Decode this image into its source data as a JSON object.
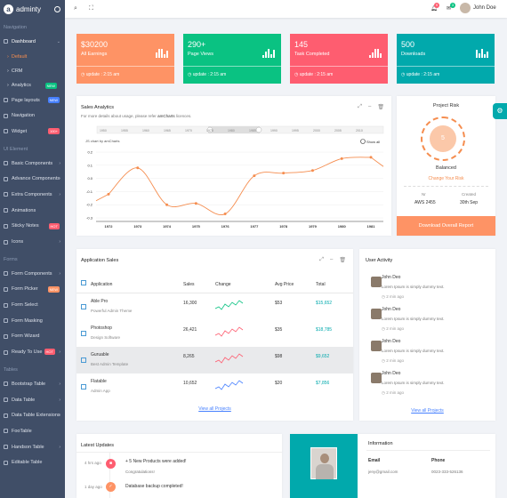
{
  "brand": {
    "name": "adminty"
  },
  "sidebar": {
    "sections": {
      "navigation": "Navigation",
      "ui": "UI Element",
      "forms": "Forms",
      "tables": "Tables"
    },
    "dashboard": "Dashboard",
    "sub_default": "Default",
    "sub_crm": "CRM",
    "sub_analytics": "Analytics",
    "badge_new": "NEW",
    "page_layouts": "Page layouts",
    "badge_new2": "NEW",
    "navigation": "Navigation",
    "widget": "Widget",
    "badge_100": "100+",
    "basic_components": "Basic Components",
    "advance_components": "Advance Components",
    "extra_components": "Extra Components",
    "animations": "Animations",
    "sticky_notes": "Sticky Notes",
    "badge_hot": "HOT",
    "icons": "Icons",
    "form_components": "Form Components",
    "form_picker": "Form Picker",
    "badge_new3": "NEW",
    "form_select": "Form Select",
    "form_masking": "Form Masking",
    "form_wizard": "Form Wizard",
    "ready_to_use": "Ready To Use",
    "badge_hot2": "HOT",
    "bootstrap_table": "Bootstrap Table",
    "data_table": "Data Table",
    "data_table_ext": "Data Table Extensions",
    "footable": "FooTable",
    "handson_table": "Handson Table",
    "editable_table": "Editable Table"
  },
  "topbar": {
    "notif1": "9",
    "notif2": "3",
    "user": "John Doe"
  },
  "stats": [
    {
      "value": "$30200",
      "label": "All Earnings",
      "update": "update : 2:15 am",
      "color": "#fe9365"
    },
    {
      "value": "290+",
      "label": "Page Views",
      "update": "update : 2:15 am",
      "color": "#0ac282"
    },
    {
      "value": "145",
      "label": "Task Completed",
      "update": "update : 2:15 am",
      "color": "#fe5d70"
    },
    {
      "value": "500",
      "label": "Downloads",
      "update": "update : 2:15 am",
      "color": "#01a9ac"
    }
  ],
  "sales_analytics": {
    "title": "Sales Analytics",
    "desc_pre": "For more details about usage, please refer ",
    "desc_link": "amCharts",
    "desc_post": " licences.",
    "credit": "JS chart by amCharts",
    "show_all": "Show all"
  },
  "chart_data": {
    "type": "line",
    "x": [
      "1972",
      "1973",
      "1974",
      "1975",
      "1976",
      "1977",
      "1978",
      "1979",
      "1980",
      "1981"
    ],
    "values": [
      -0.12,
      0.08,
      -0.2,
      -0.19,
      -0.27,
      0.02,
      0.04,
      0.06,
      0.15,
      0.16
    ],
    "yticks": [
      "0.2",
      "0.1",
      "0.0",
      "-0.1",
      "-0.2",
      "-0.3"
    ],
    "scroll_ticks": [
      "1950",
      "1955",
      "1960",
      "1965",
      "1970",
      "1975",
      "1980",
      "1985",
      "1990",
      "1995",
      "2000",
      "2005",
      "2010"
    ],
    "ylim": [
      -0.3,
      0.2
    ],
    "color": "#f58d4f"
  },
  "risk": {
    "title": "Project Risk",
    "value": "5",
    "status": "Balanced",
    "link": "Change Your Risk",
    "nr_label": "Nr",
    "nr_value": "AWS 2455",
    "created_label": "Created",
    "created_value": "30th Sep",
    "button": "Download Overall Report"
  },
  "app_sales": {
    "title": "Application Sales",
    "headers": [
      "Application",
      "Sales",
      "Change",
      "Avg Price",
      "Total"
    ],
    "rows": [
      {
        "name": "Able Pro",
        "sub": "Powerful Admin Theme",
        "sales": "16,300",
        "avg": "$53",
        "total": "$15,652",
        "color": "#0ac282"
      },
      {
        "name": "Photoshop",
        "sub": "Design Software",
        "sales": "26,421",
        "avg": "$35",
        "total": "$18,785",
        "color": "#fe5d70"
      },
      {
        "name": "Guruable",
        "sub": "Best Admin Template",
        "sales": "8,265",
        "avg": "$98",
        "total": "$9,652",
        "color": "#fe5d70"
      },
      {
        "name": "Flatable",
        "sub": "Admin App",
        "sales": "10,652",
        "avg": "$20",
        "total": "$7,856",
        "color": "#4680ff"
      }
    ],
    "link": "View all Projects"
  },
  "activity": {
    "title": "User Activity",
    "items": [
      {
        "name": "John Deo",
        "text": "Lorem Ipsum is simply dummy text.",
        "time": "2 min ago"
      },
      {
        "name": "John Deo",
        "text": "Lorem Ipsum is simply dummy text.",
        "time": "2 min ago"
      },
      {
        "name": "John Deo",
        "text": "Lorem Ipsum is simply dummy text.",
        "time": "2 min ago"
      },
      {
        "name": "John Deo",
        "text": "Lorem Ipsum is simply dummy text.",
        "time": "2 min ago"
      }
    ],
    "link": "View all Projects"
  },
  "updates": {
    "title": "Latest Updates",
    "items": [
      {
        "time": "4 hrs ago",
        "title": "+ 5 New Products were added!",
        "sub": "Congratulations!"
      },
      {
        "time": "1 day ago",
        "title": "Database backup completed!",
        "sub": ""
      }
    ]
  },
  "info": {
    "title": "Information",
    "email_label": "Email",
    "email": "jeny@gmail.com",
    "phone_label": "Phone",
    "phone": "0023-333-526136"
  }
}
